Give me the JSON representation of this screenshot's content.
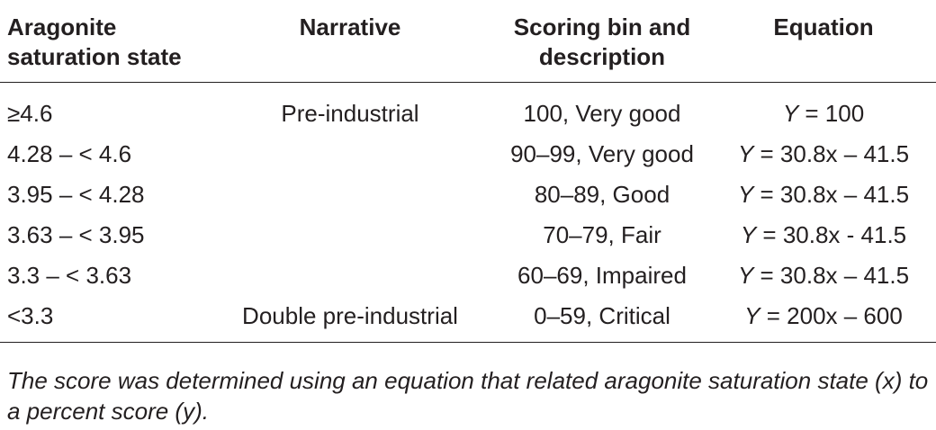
{
  "table": {
    "headers": [
      "Aragonite saturation state",
      "Narrative",
      "Scoring bin and description",
      "Equation"
    ],
    "header_lines": [
      [
        "Aragonite",
        "saturation state"
      ],
      [
        "Narrative"
      ],
      [
        "Scoring bin and",
        "description"
      ],
      [
        "Equation"
      ]
    ],
    "rows": [
      {
        "saturation": "≥4.6",
        "narrative": "Pre-industrial",
        "bin": "100, Very good",
        "eq_y": "Y",
        "eq_rest": " = 100"
      },
      {
        "saturation": "4.28 – < 4.6",
        "narrative": "",
        "bin": "90–99, Very good",
        "eq_y": "Y",
        "eq_rest": " = 30.8x – 41.5"
      },
      {
        "saturation": "3.95 – < 4.28",
        "narrative": "",
        "bin": "80–89, Good",
        "eq_y": "Y",
        "eq_rest": " = 30.8x – 41.5"
      },
      {
        "saturation": "3.63 – < 3.95",
        "narrative": "",
        "bin": "70–79, Fair",
        "eq_y": "Y",
        "eq_rest": " = 30.8x - 41.5"
      },
      {
        "saturation": "3.3 – < 3.63",
        "narrative": "",
        "bin": "60–69, Impaired",
        "eq_y": "Y",
        "eq_rest": " = 30.8x – 41.5"
      },
      {
        "saturation": "<3.3",
        "narrative": "Double pre-industrial",
        "bin": "0–59, Critical",
        "eq_y": "Y",
        "eq_rest": " = 200x – 600"
      }
    ]
  },
  "footnote": "The score was determined using an equation that related aragonite saturation state (x) to a percent score (y)."
}
